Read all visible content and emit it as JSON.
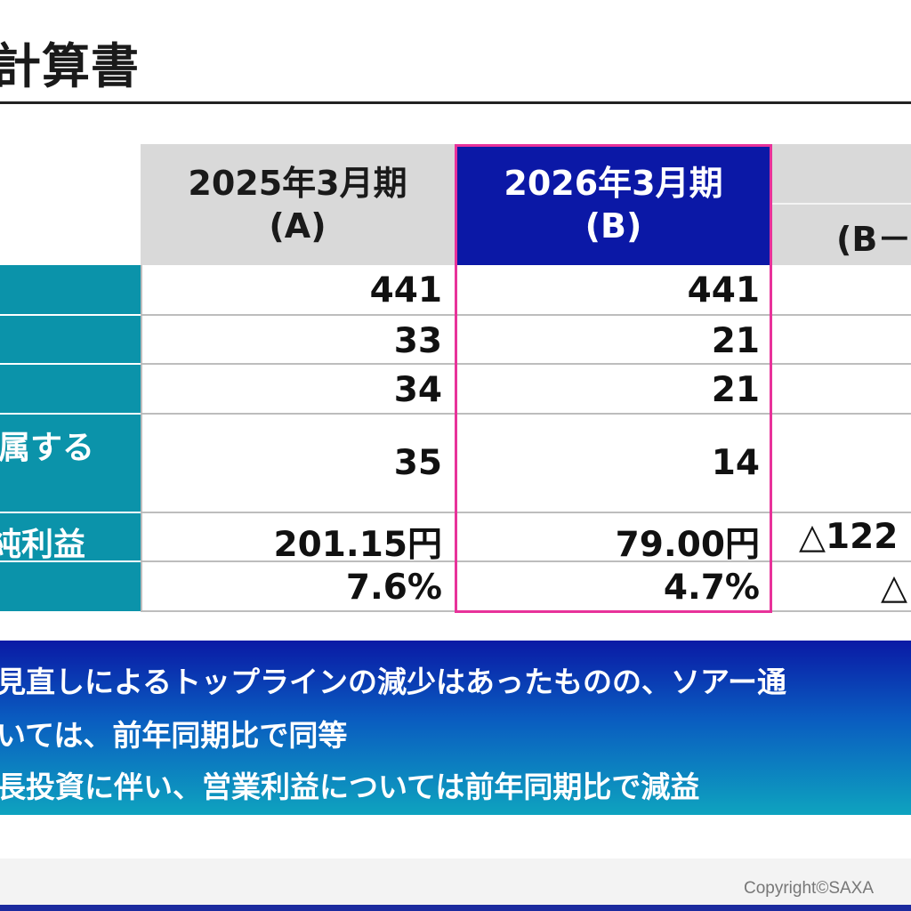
{
  "title": "計算書",
  "table": {
    "headers": [
      {
        "line1": "2025年3月期",
        "line2": "(A)"
      },
      {
        "line1": "2026年3月期",
        "line2": "(B)"
      },
      {
        "line1": "",
        "line2": "(B－"
      }
    ],
    "rows": [
      {
        "label": "",
        "a": "441",
        "b": "441",
        "c": ""
      },
      {
        "label": "",
        "a": "33",
        "b": "21",
        "c": ""
      },
      {
        "label": "",
        "a": "34",
        "b": "21",
        "c": ""
      },
      {
        "label": "属する",
        "a": "35",
        "b": "14",
        "c": ""
      },
      {
        "label": "純利益",
        "a": "201.15円",
        "b": "79.00円",
        "c": "△122"
      },
      {
        "label": "",
        "a": "7.6%",
        "b": "4.7%",
        "c": "△"
      }
    ]
  },
  "banner": {
    "line1": "見直しによるトップラインの減少はあったものの、ソアー通",
    "line2": "いては、前年同期比で同等",
    "line3": "長投資に伴い、営業利益については前年同期比で減益"
  },
  "footer": {
    "copyright": "Copyright©SAXA"
  },
  "colors": {
    "header_gray": "#d9d9d9",
    "header_blue": "#0b18a6",
    "row_label_teal": "#0b93aa",
    "highlight_border": "#e8329a",
    "banner_top": "#0a1aa5",
    "banner_bottom": "#0ea3bf"
  }
}
